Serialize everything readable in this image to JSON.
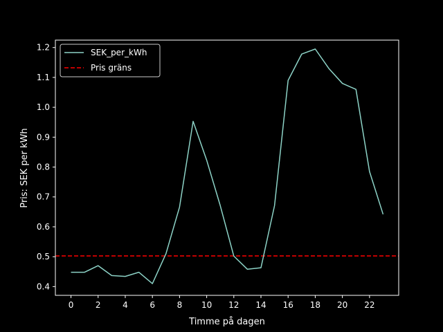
{
  "chart_data": {
    "type": "line",
    "title": "",
    "xlabel": "Timme på dagen",
    "ylabel": "Pris: SEK per kWh",
    "x": [
      0,
      1,
      2,
      3,
      4,
      5,
      6,
      7,
      8,
      9,
      10,
      11,
      12,
      13,
      14,
      15,
      16,
      17,
      18,
      19,
      20,
      21,
      22,
      23
    ],
    "xticks": [
      "0",
      "2",
      "4",
      "6",
      "8",
      "10",
      "12",
      "14",
      "16",
      "18",
      "20",
      "22"
    ],
    "yticks": [
      "0.4",
      "0.5",
      "0.6",
      "0.7",
      "0.8",
      "0.9",
      "1.0",
      "1.1",
      "1.2"
    ],
    "xlim": [
      -1.15,
      24.15
    ],
    "ylim": [
      0.3707,
      1.2248
    ],
    "grid": false,
    "legend_position": "upper-left",
    "series": [
      {
        "name": "SEK_per_kWh",
        "color": "#8dd3c7",
        "style": "solid",
        "values": [
          0.448,
          0.448,
          0.47,
          0.437,
          0.434,
          0.448,
          0.41,
          0.51,
          0.666,
          0.953,
          0.823,
          0.671,
          0.502,
          0.458,
          0.463,
          0.671,
          1.09,
          1.178,
          1.195,
          1.13,
          1.08,
          1.06,
          0.785,
          0.642
        ]
      }
    ],
    "threshold": {
      "name": "Pris gräns",
      "color": "#ff0000",
      "style": "dashed",
      "value": 0.5025
    },
    "background": "#000000",
    "foreground": "#ffffff"
  }
}
